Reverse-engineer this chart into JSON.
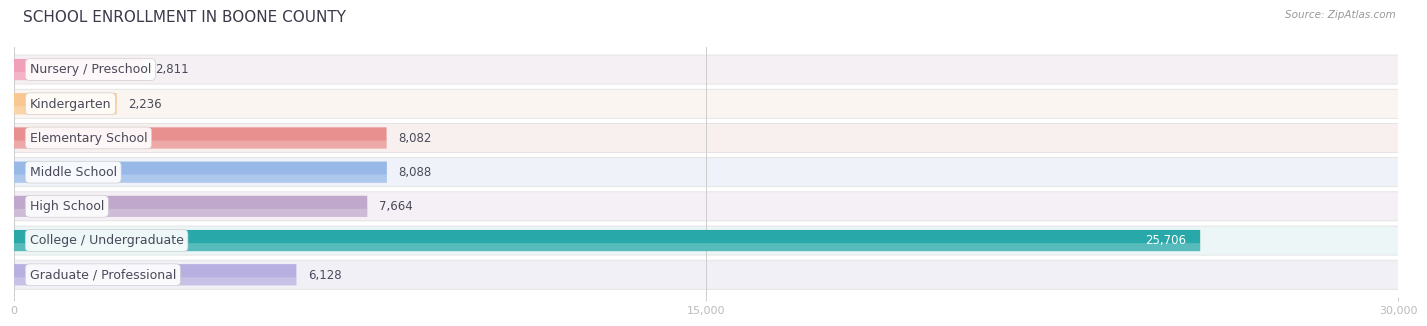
{
  "title": "SCHOOL ENROLLMENT IN BOONE COUNTY",
  "source": "Source: ZipAtlas.com",
  "categories": [
    "Nursery / Preschool",
    "Kindergarten",
    "Elementary School",
    "Middle School",
    "High School",
    "College / Undergraduate",
    "Graduate / Professional"
  ],
  "values": [
    2811,
    2236,
    8082,
    8088,
    7664,
    25706,
    6128
  ],
  "bar_colors": [
    "#f0a0b8",
    "#f8c890",
    "#e89090",
    "#98b8e8",
    "#c0a8cc",
    "#28a8a8",
    "#b8b0e0"
  ],
  "row_bg_colors": [
    "#f5f0f3",
    "#faf5f0",
    "#f8f0ef",
    "#eff2f8",
    "#f4f0f6",
    "#edf6f6",
    "#f2f0f7"
  ],
  "value_labels": [
    "2,811",
    "2,236",
    "8,082",
    "8,088",
    "7,664",
    "25,706",
    "6,128"
  ],
  "college_idx": 5,
  "xlim": [
    0,
    30000
  ],
  "xticks": [
    0,
    15000,
    30000
  ],
  "xtick_labels": [
    "0",
    "15,000",
    "30,000"
  ],
  "title_fontsize": 11,
  "label_fontsize": 9,
  "value_fontsize": 8.5,
  "title_color": "#3a3a4a",
  "label_color": "#4a4a5a",
  "value_color": "#4a4a5a"
}
